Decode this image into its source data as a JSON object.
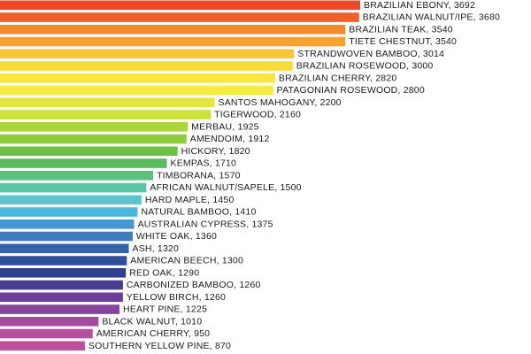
{
  "chart_data": {
    "type": "bar",
    "orientation": "horizontal",
    "title": "",
    "xlabel": "",
    "ylabel": "",
    "xlim": [
      0,
      3692
    ],
    "grid": false,
    "legend": "none",
    "data_labels": "inside-label-right-of-bar",
    "bars": [
      {
        "label": "BRAZILIAN EBONY, 3692",
        "category": "BRAZILIAN EBONY",
        "value": 3692,
        "color": "#ee4a2a"
      },
      {
        "label": "BRAZILIAN WALNUT/IPE, 3680",
        "category": "BRAZILIAN WALNUT/IPE",
        "value": 3680,
        "color": "#f1602b"
      },
      {
        "label": "BRAZILIAN TEAK, 3540",
        "category": "BRAZILIAN TEAK",
        "value": 3540,
        "color": "#f48a2e"
      },
      {
        "label": "TIETE CHESTNUT, 3540",
        "category": "TIETE CHESTNUT",
        "value": 3540,
        "color": "#f6a431"
      },
      {
        "label": "STRANDWOVEN BAMBOO, 3014",
        "category": "STRANDWOVEN BAMBOO",
        "value": 3014,
        "color": "#f8c536"
      },
      {
        "label": "BRAZILIAN ROSEWOOD, 3000",
        "category": "BRAZILIAN ROSEWOOD",
        "value": 3000,
        "color": "#fadb3b"
      },
      {
        "label": "BRAZILIAN CHERRY, 2820",
        "category": "BRAZILIAN CHERRY",
        "value": 2820,
        "color": "#f9e53f"
      },
      {
        "label": "PATAGONIAN ROSEWOOD, 2800",
        "category": "PATAGONIAN ROSEWOOD",
        "value": 2800,
        "color": "#f5ea42"
      },
      {
        "label": "SANTOS MAHOGANY, 2200",
        "category": "SANTOS MAHOGANY",
        "value": 2200,
        "color": "#e2e63f"
      },
      {
        "label": "TIGERWOOD, 2160",
        "category": "TIGERWOOD",
        "value": 2160,
        "color": "#cde03c"
      },
      {
        "label": "MERBAU, 1925",
        "category": "MERBAU",
        "value": 1925,
        "color": "#afd53a"
      },
      {
        "label": "AMENDOIM, 1912",
        "category": "AMENDOIM",
        "value": 1912,
        "color": "#8fcb3e"
      },
      {
        "label": "HICKORY, 1820",
        "category": "HICKORY",
        "value": 1820,
        "color": "#6cc045"
      },
      {
        "label": "KEMPAS, 1710",
        "category": "KEMPAS",
        "value": 1710,
        "color": "#5cbb5e"
      },
      {
        "label": "TIMBORANA, 1570",
        "category": "TIMBORANA",
        "value": 1570,
        "color": "#5cc081"
      },
      {
        "label": "AFRICAN WALNUT/SAPELE, 1500",
        "category": "AFRICAN WALNUT/SAPELE",
        "value": 1500,
        "color": "#5cc6a9"
      },
      {
        "label": "HARD MAPLE, 1450",
        "category": "HARD MAPLE",
        "value": 1450,
        "color": "#59c6cc"
      },
      {
        "label": "NATURAL BAMBOO, 1410",
        "category": "NATURAL BAMBOO",
        "value": 1410,
        "color": "#50b4df"
      },
      {
        "label": "AUSTRALIAN CYPRESS, 1375",
        "category": "AUSTRALIAN CYPRESS",
        "value": 1375,
        "color": "#4598d3"
      },
      {
        "label": "WHITE OAK, 1360",
        "category": "WHITE OAK",
        "value": 1360,
        "color": "#3c7cbf"
      },
      {
        "label": "ASH, 1320",
        "category": "ASH",
        "value": 1320,
        "color": "#3263ab"
      },
      {
        "label": "AMERICAN BEECH, 1300",
        "category": "AMERICAN BEECH",
        "value": 1300,
        "color": "#2c4f97"
      },
      {
        "label": "RED OAK, 1290",
        "category": "RED OAK",
        "value": 1290,
        "color": "#2e3f8c"
      },
      {
        "label": "CARBONIZED BAMBOO, 1260",
        "category": "CARBONIZED BAMBOO",
        "value": 1260,
        "color": "#4a3c91"
      },
      {
        "label": "YELLOW BIRCH, 1260",
        "category": "YELLOW BIRCH",
        "value": 1260,
        "color": "#6a3f98"
      },
      {
        "label": "HEART PINE, 1225",
        "category": "HEART PINE",
        "value": 1225,
        "color": "#87449c"
      },
      {
        "label": "BLACK WALNUT, 1010",
        "category": "BLACK WALNUT",
        "value": 1010,
        "color": "#a34b9f"
      },
      {
        "label": "AMERICAN CHERRY, 950",
        "category": "AMERICAN CHERRY",
        "value": 950,
        "color": "#b64f9f"
      },
      {
        "label": "SOUTHERN YELLOW PINE, 870",
        "category": "SOUTHERN YELLOW PINE",
        "value": 870,
        "color": "#c04f9a"
      }
    ]
  }
}
